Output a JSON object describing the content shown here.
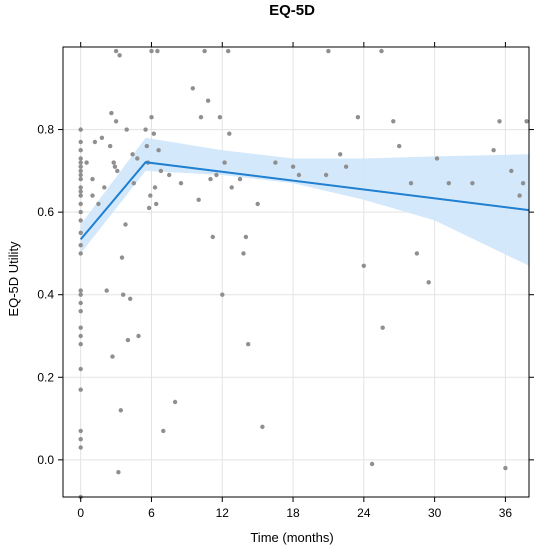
{
  "chart_data": {
    "type": "scatter",
    "title": "EQ-5D",
    "xlabel": "Time (months)",
    "ylabel": "EQ-5D Utility",
    "xlim": [
      -1.5,
      38
    ],
    "ylim": [
      -0.09,
      1.0
    ],
    "xticks": [
      0,
      6,
      12,
      18,
      24,
      30,
      36
    ],
    "yticks": [
      0.0,
      0.2,
      0.4,
      0.6,
      0.8
    ],
    "ytick_labels": [
      "0.0",
      "0.2",
      "0.4",
      "0.6",
      "0.8"
    ],
    "grid": true,
    "colors": {
      "points": "#8f8f8f",
      "fit": "#1f7fd1",
      "band": "#cfe6fb"
    },
    "points": [
      [
        0,
        -0.09
      ],
      [
        0,
        0.03
      ],
      [
        0,
        0.05
      ],
      [
        0,
        0.07
      ],
      [
        0,
        0.17
      ],
      [
        0,
        0.22
      ],
      [
        0,
        0.28
      ],
      [
        0,
        0.3
      ],
      [
        0,
        0.32
      ],
      [
        0,
        0.36
      ],
      [
        0,
        0.38
      ],
      [
        0,
        0.4
      ],
      [
        0,
        0.41
      ],
      [
        0,
        0.5
      ],
      [
        0,
        0.52
      ],
      [
        0,
        0.55
      ],
      [
        0,
        0.58
      ],
      [
        0,
        0.6
      ],
      [
        0,
        0.62
      ],
      [
        0,
        0.64
      ],
      [
        0,
        0.65
      ],
      [
        0,
        0.66
      ],
      [
        0,
        0.68
      ],
      [
        0,
        0.69
      ],
      [
        0,
        0.7
      ],
      [
        0,
        0.71
      ],
      [
        0,
        0.72
      ],
      [
        0,
        0.73
      ],
      [
        0,
        0.75
      ],
      [
        0,
        0.77
      ],
      [
        0,
        0.8
      ],
      [
        0.5,
        0.72
      ],
      [
        1,
        0.64
      ],
      [
        1,
        0.68
      ],
      [
        1.2,
        0.77
      ],
      [
        1.5,
        0.62
      ],
      [
        1.8,
        0.78
      ],
      [
        2.0,
        0.66
      ],
      [
        2.2,
        0.41
      ],
      [
        2.5,
        0.76
      ],
      [
        2.6,
        0.84
      ],
      [
        2.7,
        0.25
      ],
      [
        2.8,
        0.72
      ],
      [
        2.9,
        0.71
      ],
      [
        3.0,
        0.82
      ],
      [
        3.0,
        0.99
      ],
      [
        3.1,
        0.7
      ],
      [
        3.2,
        -0.03
      ],
      [
        3.3,
        0.98
      ],
      [
        3.4,
        0.12
      ],
      [
        3.5,
        0.49
      ],
      [
        3.6,
        0.4
      ],
      [
        3.8,
        0.57
      ],
      [
        3.9,
        0.8
      ],
      [
        4.0,
        0.29
      ],
      [
        4.2,
        0.39
      ],
      [
        4.4,
        0.74
      ],
      [
        4.5,
        0.67
      ],
      [
        4.8,
        0.73
      ],
      [
        4.9,
        0.3
      ],
      [
        5.5,
        0.8
      ],
      [
        5.6,
        0.76
      ],
      [
        5.7,
        0.72
      ],
      [
        5.8,
        0.61
      ],
      [
        5.9,
        0.64
      ],
      [
        6.0,
        0.99
      ],
      [
        6.0,
        0.83
      ],
      [
        6.2,
        0.79
      ],
      [
        6.3,
        0.66
      ],
      [
        6.4,
        0.62
      ],
      [
        6.5,
        0.99
      ],
      [
        6.6,
        0.75
      ],
      [
        6.8,
        0.7
      ],
      [
        7.0,
        0.07
      ],
      [
        7.5,
        0.69
      ],
      [
        8.0,
        0.14
      ],
      [
        8.5,
        0.67
      ],
      [
        9.5,
        0.9
      ],
      [
        10.0,
        0.63
      ],
      [
        10.2,
        0.83
      ],
      [
        10.5,
        0.99
      ],
      [
        10.8,
        0.87
      ],
      [
        11.0,
        0.68
      ],
      [
        11.2,
        0.54
      ],
      [
        11.5,
        0.69
      ],
      [
        11.8,
        0.83
      ],
      [
        12.0,
        0.4
      ],
      [
        12.2,
        0.72
      ],
      [
        12.5,
        0.99
      ],
      [
        12.6,
        0.79
      ],
      [
        12.8,
        0.66
      ],
      [
        13.5,
        0.68
      ],
      [
        13.8,
        0.5
      ],
      [
        14.0,
        0.54
      ],
      [
        14.2,
        0.28
      ],
      [
        15.0,
        0.62
      ],
      [
        15.4,
        0.08
      ],
      [
        16.5,
        0.72
      ],
      [
        18.0,
        0.71
      ],
      [
        18.5,
        0.69
      ],
      [
        20.8,
        0.69
      ],
      [
        21.0,
        0.99
      ],
      [
        22.0,
        0.74
      ],
      [
        22.5,
        0.71
      ],
      [
        23.5,
        0.83
      ],
      [
        24.0,
        0.47
      ],
      [
        24.7,
        -0.01
      ],
      [
        25.5,
        0.99
      ],
      [
        25.6,
        0.32
      ],
      [
        26.5,
        0.82
      ],
      [
        27.0,
        0.76
      ],
      [
        28.0,
        0.67
      ],
      [
        28.5,
        0.5
      ],
      [
        29.5,
        0.43
      ],
      [
        30.2,
        0.73
      ],
      [
        31.2,
        0.67
      ],
      [
        33.2,
        0.67
      ],
      [
        35.0,
        0.75
      ],
      [
        35.5,
        0.82
      ],
      [
        36.0,
        -0.02
      ],
      [
        36.5,
        0.7
      ],
      [
        37.2,
        0.64
      ],
      [
        37.5,
        0.67
      ],
      [
        37.8,
        0.82
      ]
    ],
    "fit": [
      [
        0,
        0.534
      ],
      [
        5.5,
        0.721
      ],
      [
        38,
        0.605
      ]
    ],
    "band": {
      "upper": [
        [
          0,
          0.57
        ],
        [
          5.5,
          0.78
        ],
        [
          12,
          0.75
        ],
        [
          18,
          0.73
        ],
        [
          24,
          0.73
        ],
        [
          30,
          0.735
        ],
        [
          38,
          0.74
        ]
      ],
      "lower": [
        [
          0,
          0.5
        ],
        [
          5.5,
          0.7
        ],
        [
          12,
          0.69
        ],
        [
          18,
          0.67
        ],
        [
          24,
          0.63
        ],
        [
          30,
          0.58
        ],
        [
          38,
          0.47
        ]
      ]
    }
  }
}
